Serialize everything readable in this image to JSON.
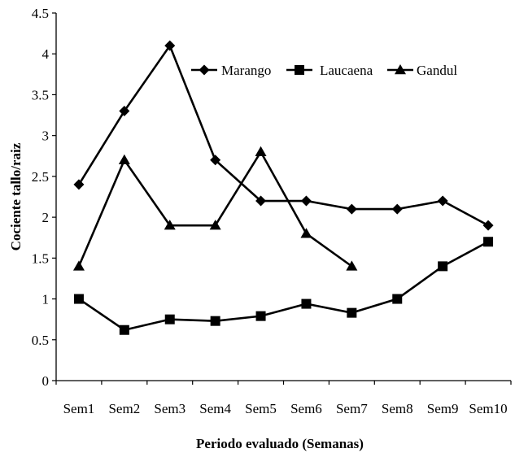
{
  "chart_data": {
    "type": "line",
    "title": "",
    "xlabel": "Periodo evaluado (Semanas)",
    "ylabel": "Cociente tallo/raiz",
    "ylim": [
      0,
      4.5
    ],
    "yticks": [
      "0",
      "0.5",
      "1",
      "1.5",
      "2",
      "2.5",
      "3",
      "3.5",
      "4",
      "4.5"
    ],
    "categories": [
      "Sem1",
      "Sem2",
      "Sem3",
      "Sem4",
      "Sem5",
      "Sem6",
      "Sem7",
      "Sem8",
      "Sem9",
      "Sem10"
    ],
    "grid": false,
    "legend": "top-right",
    "series": [
      {
        "name": "Marango",
        "marker": "diamond",
        "color": "#000000",
        "values": [
          2.4,
          3.3,
          4.1,
          2.7,
          2.2,
          2.2,
          2.1,
          2.1,
          2.2,
          1.9
        ]
      },
      {
        "name": "Laucaena",
        "marker": "square",
        "color": "#000000",
        "values": [
          1.0,
          0.62,
          0.75,
          0.73,
          0.79,
          0.94,
          0.83,
          1.0,
          1.4,
          1.7
        ]
      },
      {
        "name": "Gandul",
        "marker": "triangle",
        "color": "#000000",
        "values": [
          1.4,
          2.7,
          1.9,
          1.9,
          2.8,
          1.8,
          1.4,
          null,
          null,
          null
        ]
      }
    ]
  }
}
